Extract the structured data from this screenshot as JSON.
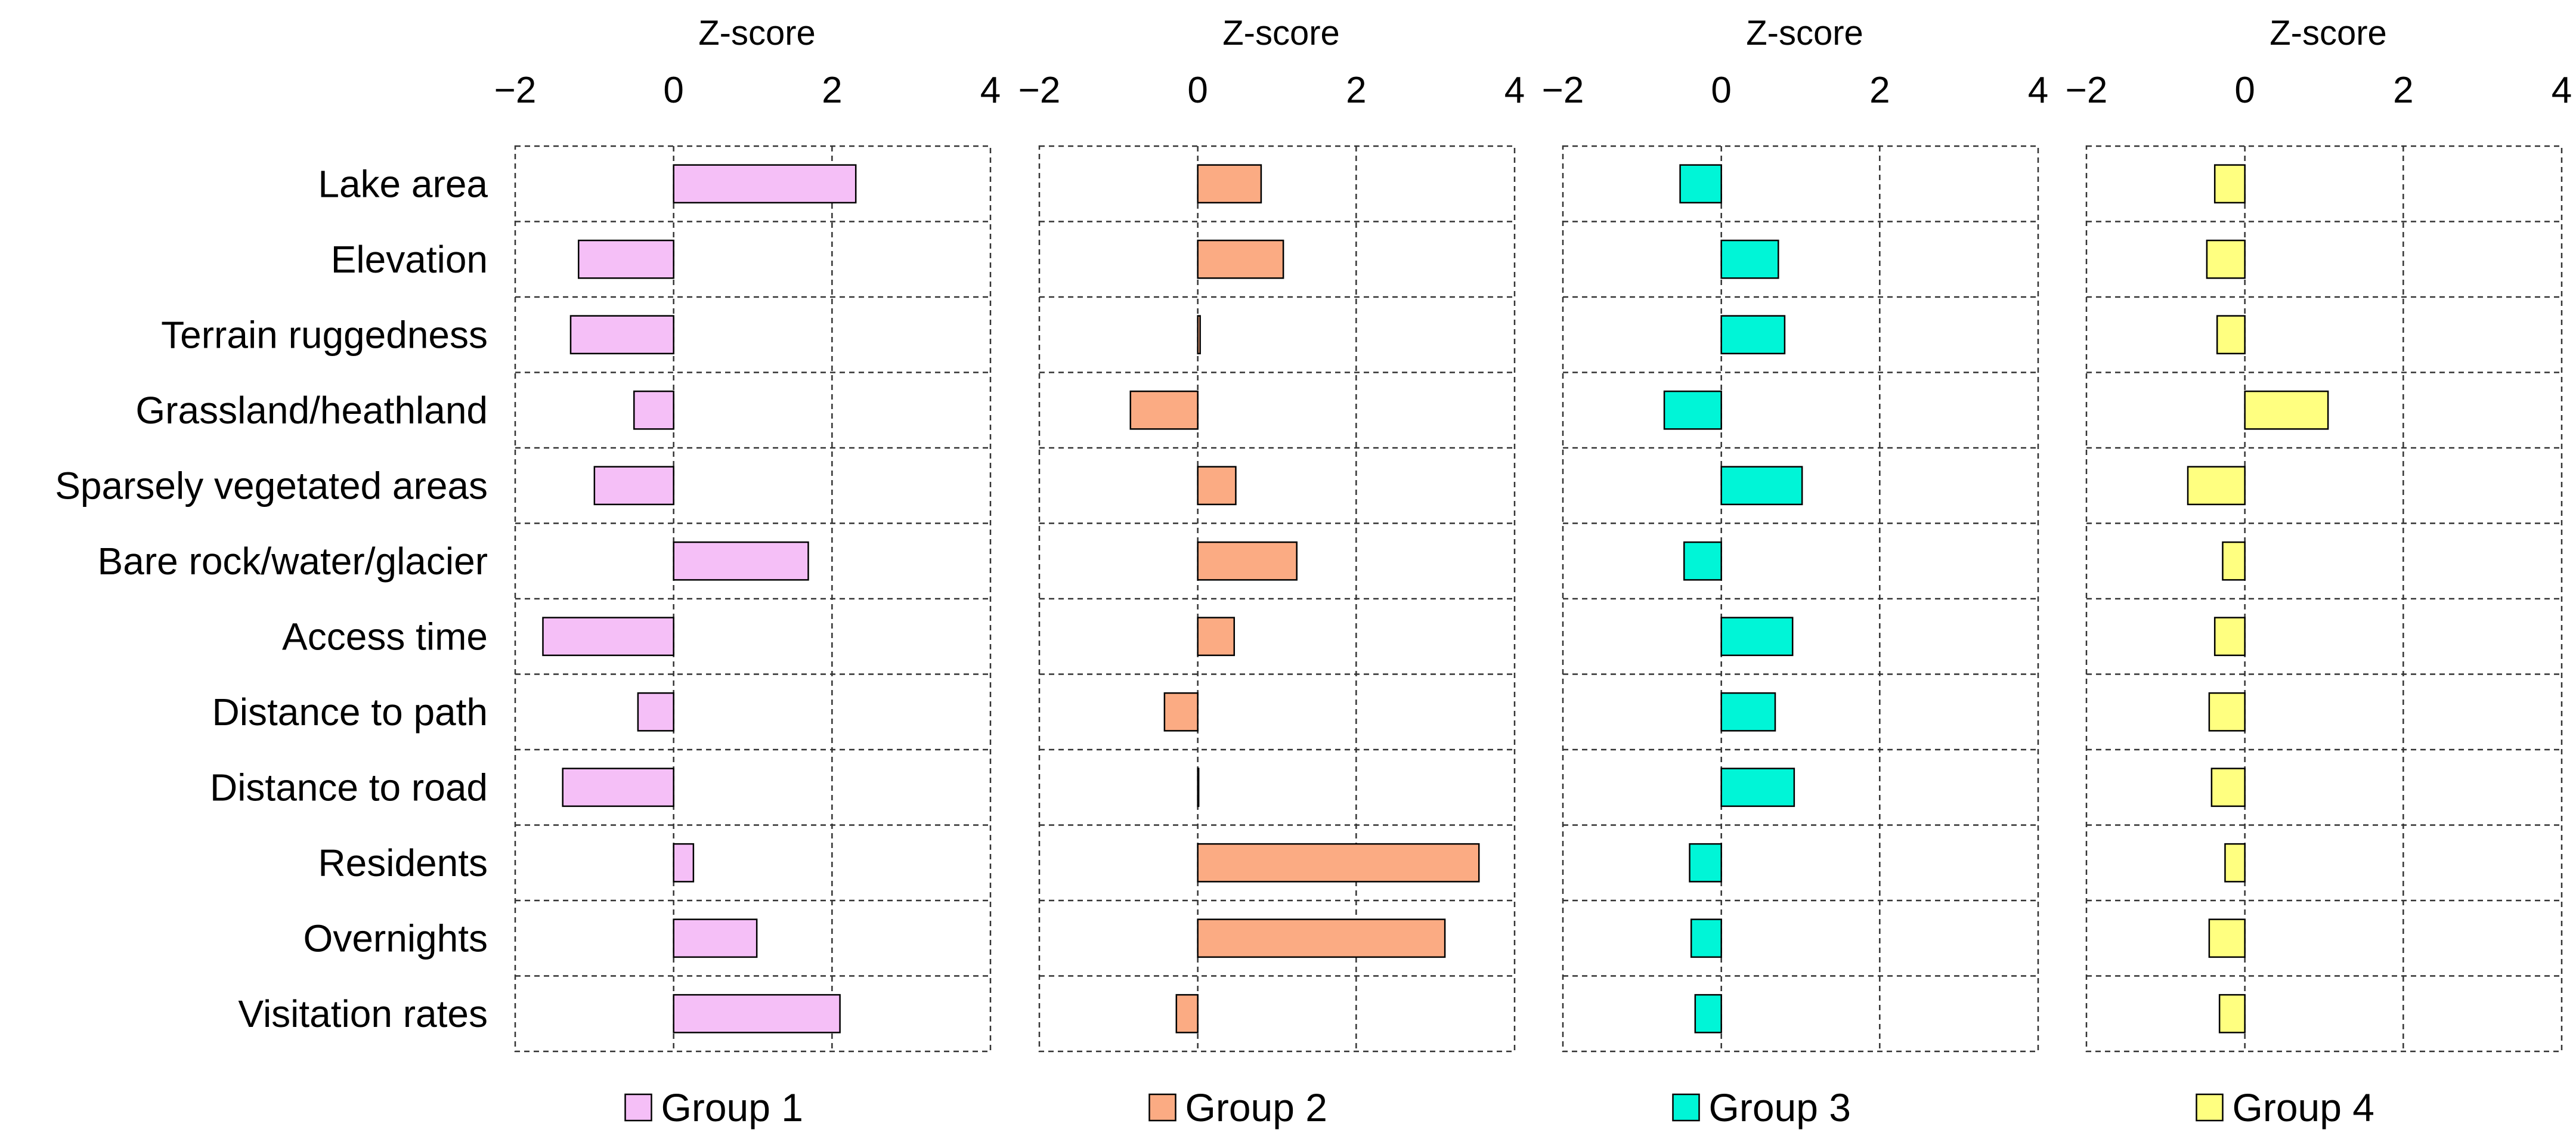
{
  "chart_data": {
    "type": "bar",
    "orientation": "horizontal",
    "xlabel": "Z-score",
    "xlim": [
      -2,
      4
    ],
    "xticks": [
      -2,
      0,
      2,
      4
    ],
    "xtick_labels": [
      "−2",
      "0",
      "2",
      "4"
    ],
    "grid": true,
    "legend_position": "bottom",
    "categories": [
      "Lake area",
      "Elevation",
      "Terrain ruggedness",
      "Grassland/heathland",
      "Sparsely vegetated areas",
      "Bare rock/water/glacier",
      "Access time",
      "Distance to path",
      "Distance to road",
      "Residents",
      "Overnights",
      "Visitation rates"
    ],
    "series": [
      {
        "name": "Group 1",
        "color": "#F5BFF7",
        "values": [
          2.3,
          -1.2,
          -1.3,
          -0.5,
          -1.0,
          1.7,
          -1.65,
          -0.45,
          -1.4,
          0.25,
          1.05,
          2.1
        ]
      },
      {
        "name": "Group 2",
        "color": "#FBAB83",
        "values": [
          0.8,
          1.08,
          0.03,
          -0.85,
          0.48,
          1.25,
          0.46,
          -0.42,
          0.01,
          3.55,
          3.12,
          -0.27
        ]
      },
      {
        "name": "Group 3",
        "color": "#00F5D7",
        "values": [
          -0.52,
          0.72,
          0.8,
          -0.72,
          1.02,
          -0.47,
          0.9,
          0.68,
          0.92,
          -0.4,
          -0.38,
          -0.33
        ]
      },
      {
        "name": "Group 4",
        "color": "#FFFF80",
        "values": [
          -0.38,
          -0.48,
          -0.35,
          1.05,
          -0.72,
          -0.28,
          -0.38,
          -0.45,
          -0.42,
          -0.25,
          -0.45,
          -0.32
        ]
      }
    ]
  }
}
